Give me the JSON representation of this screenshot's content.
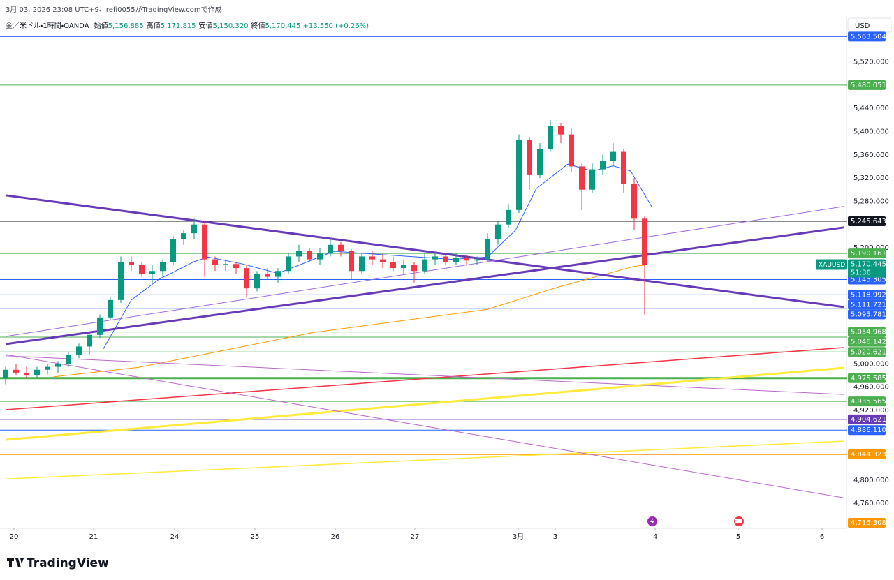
{
  "header": {
    "credit": "3月 03, 2026 23:08 UTC+9、refi0055がTradingView.comで作成",
    "symbol": "金／米ドル・1時間・OANDA",
    "ohlc": [
      {
        "label": "始値",
        "value": "5,156.885"
      },
      {
        "label": "高値",
        "value": "5,171.815"
      },
      {
        "label": "安値",
        "value": "5,150.320"
      },
      {
        "label": "終値",
        "value": "5,170.445"
      }
    ],
    "change": "+13.550 (+0.26%)",
    "currency": "USD",
    "logo": "TradingView"
  },
  "chart_data": {
    "type": "candlestick",
    "up_color": "#089981",
    "down_color": "#f23645",
    "ylim": [
      4717,
      5600
    ],
    "xlim": [
      0,
      240
    ],
    "yticks": [
      {
        "value": 5520,
        "label": "5,520.000"
      },
      {
        "value": 5440,
        "label": "5,440.000"
      },
      {
        "value": 5400,
        "label": "5,400.000"
      },
      {
        "value": 5360,
        "label": "5,360.000"
      },
      {
        "value": 5320,
        "label": "5,320.000"
      },
      {
        "value": 5280,
        "label": "5,280.000"
      },
      {
        "value": 5200,
        "label": "5,200.000"
      },
      {
        "value": 5000,
        "label": "5,000.000"
      },
      {
        "value": 4960,
        "label": "4,960.000"
      },
      {
        "value": 4920,
        "label": "4,920.000"
      },
      {
        "value": 4800,
        "label": "4,800.000"
      },
      {
        "value": 4760,
        "label": "4,760.000"
      }
    ],
    "xticks": [
      {
        "value": 2.4,
        "label": "20"
      },
      {
        "value": 25.2,
        "label": "21"
      },
      {
        "value": 48.4,
        "label": "24"
      },
      {
        "value": 71.4,
        "label": "25"
      },
      {
        "value": 94.4,
        "label": "26"
      },
      {
        "value": 117.2,
        "label": "27"
      },
      {
        "value": 146.8,
        "label": "3月"
      },
      {
        "value": 157.4,
        "label": "3"
      },
      {
        "value": 186,
        "label": "4"
      },
      {
        "value": 209.8,
        "label": "5"
      },
      {
        "value": 233.8,
        "label": "6"
      }
    ],
    "candles": {
      "x": [
        0,
        3,
        6,
        9,
        12,
        15,
        18,
        21,
        24,
        27,
        30,
        33,
        36,
        39,
        42,
        45,
        48,
        51,
        54,
        57,
        60,
        63,
        66,
        69,
        72,
        75,
        78,
        81,
        84,
        87,
        90,
        93,
        96,
        99,
        102,
        105,
        108,
        111,
        114,
        117,
        120,
        123,
        126,
        129,
        132,
        135,
        138,
        141,
        144,
        147,
        150,
        153,
        156,
        159,
        162,
        165,
        168,
        171,
        174,
        177,
        180,
        183
      ],
      "open": [
        4975,
        4990,
        4985,
        4980,
        4990,
        4995,
        5000,
        5015,
        5030,
        5050,
        5080,
        5110,
        5175,
        5170,
        5155,
        5160,
        5175,
        5215,
        5225,
        5240,
        5180,
        5170,
        5172,
        5165,
        5130,
        5155,
        5150,
        5160,
        5185,
        5195,
        5180,
        5190,
        5205,
        5195,
        5160,
        5185,
        5180,
        5175,
        5165,
        5170,
        5160,
        5180,
        5185,
        5175,
        5182,
        5178,
        5180,
        5215,
        5240,
        5265,
        5385,
        5325,
        5370,
        5410,
        5395,
        5340,
        5300,
        5335,
        5350,
        5365,
        5310,
        5250
      ],
      "high": [
        4995,
        5000,
        4995,
        4995,
        5000,
        5005,
        5020,
        5035,
        5055,
        5085,
        5115,
        5185,
        5185,
        5175,
        5170,
        5180,
        5220,
        5230,
        5250,
        5245,
        5185,
        5180,
        5175,
        5170,
        5160,
        5165,
        5165,
        5190,
        5205,
        5200,
        5200,
        5215,
        5210,
        5198,
        5190,
        5195,
        5190,
        5185,
        5180,
        5175,
        5190,
        5190,
        5190,
        5190,
        5188,
        5185,
        5225,
        5245,
        5275,
        5395,
        5390,
        5380,
        5420,
        5415,
        5405,
        5345,
        5345,
        5360,
        5380,
        5370,
        5320,
        5255
      ],
      "low": [
        4965,
        4980,
        4975,
        4975,
        4982,
        4985,
        4995,
        5010,
        5015,
        5045,
        5075,
        5105,
        5160,
        5150,
        5140,
        5150,
        5170,
        5205,
        5215,
        5150,
        5160,
        5160,
        5155,
        5115,
        5125,
        5145,
        5140,
        5155,
        5175,
        5175,
        5170,
        5185,
        5185,
        5145,
        5155,
        5170,
        5165,
        5160,
        5155,
        5140,
        5155,
        5170,
        5170,
        5170,
        5170,
        5170,
        5175,
        5205,
        5235,
        5260,
        5300,
        5320,
        5365,
        5380,
        5330,
        5265,
        5295,
        5325,
        5340,
        5295,
        5230,
        5085
      ],
      "close": [
        4990,
        4985,
        4980,
        4990,
        4995,
        5000,
        5015,
        5030,
        5050,
        5080,
        5110,
        5175,
        5170,
        5155,
        5160,
        5175,
        5215,
        5225,
        5240,
        5180,
        5170,
        5172,
        5165,
        5130,
        5155,
        5150,
        5160,
        5185,
        5195,
        5180,
        5190,
        5205,
        5195,
        5160,
        5185,
        5180,
        5175,
        5165,
        5170,
        5160,
        5180,
        5185,
        5175,
        5182,
        5178,
        5180,
        5215,
        5240,
        5265,
        5385,
        5325,
        5370,
        5410,
        5395,
        5340,
        5300,
        5335,
        5350,
        5365,
        5310,
        5250,
        5170
      ]
    },
    "lines": [
      {
        "color": "#2962ff",
        "width": 1,
        "x": [
          28,
          36,
          44,
          54,
          58,
          68,
          78,
          84,
          94,
          108,
          128,
          138,
          146,
          152,
          161,
          168,
          174,
          179,
          185
        ],
        "values": [
          5026,
          5110,
          5146,
          5176,
          5184,
          5172,
          5156,
          5170,
          5194,
          5188,
          5180,
          5184,
          5230,
          5302,
          5344,
          5332,
          5341,
          5332,
          5271
        ]
      },
      {
        "color": "#ff9800",
        "width": 1,
        "x": [
          14,
          38,
          58,
          88,
          118,
          138,
          158,
          180,
          183
        ],
        "values": [
          4978,
          4994,
          5018,
          5054,
          5078,
          5094,
          5132,
          5168,
          5170
        ]
      },
      {
        "color": "#673ab7",
        "width": 3,
        "x": [
          0,
          240
        ],
        "values": [
          5290.3,
          5098
        ]
      },
      {
        "color": "#673ab7",
        "width": 3,
        "x": [
          0,
          240
        ],
        "values": [
          5034.2,
          5235
        ]
      },
      {
        "color": "#9c6ade",
        "width": 1,
        "x": [
          0,
          240
        ],
        "values": [
          5047.4,
          5271.1
        ]
      },
      {
        "color": "#f23645",
        "width": 1.5,
        "x": [
          0,
          240
        ],
        "values": [
          4921.2,
          5028.2
        ]
      },
      {
        "color": "#ffeb3b",
        "width": 3,
        "x": [
          0,
          240
        ],
        "values": [
          4869.4,
          4993.3
        ]
      },
      {
        "color": "#ffeb3b",
        "width": 1.5,
        "x": [
          0,
          240
        ],
        "values": [
          4802.1,
          4867
        ]
      },
      {
        "color": "#ba68c8",
        "width": 1,
        "x": [
          0,
          240
        ],
        "values": [
          5016.2,
          4769.6
        ]
      },
      {
        "color": "#ba68c8",
        "width": 1,
        "x": [
          0,
          240
        ],
        "values": [
          5014,
          4947.6
        ]
      }
    ],
    "levels": {
      "values": [
        5563.504,
        5480.051,
        5245.643,
        5190.161,
        5145.305,
        5118.992,
        5111.721,
        5095.781,
        5054.968,
        5046.142,
        5020.621,
        4975.585,
        4935.565,
        4904.621,
        4886.11,
        4844.323,
        4715.308
      ],
      "value_labels": [
        "5,563.504",
        "5,480.051",
        "5,245.643",
        "5,190.161",
        "5,145.305",
        "5,118.992",
        "5,111.721",
        "5,095.781",
        "5,054.968",
        "5,046.142",
        "5,020.621",
        "4,975.585",
        "4,935.565",
        "4,904.621",
        "4,886.110",
        "4,844.323",
        "4,715.308"
      ],
      "colors": [
        "#2962ff",
        "#4caf50",
        "#131722",
        "#4caf50",
        "#2962ff",
        "#2962ff",
        "#2962ff",
        "#2962ff",
        "#4caf50",
        "#4caf50",
        "#4caf50",
        "#4caf50",
        "#4caf50",
        "#673ab7",
        "#2962ff",
        "#ff9800",
        "#ff9800"
      ],
      "widths": [
        1,
        1,
        1,
        1,
        1,
        1,
        1,
        1,
        1,
        1,
        1,
        3,
        1,
        1,
        1,
        1.5,
        0
      ]
    },
    "last_price": {
      "value": 5170.445,
      "label": "5,170.445",
      "symbol": "XAUUSD",
      "countdown": "51:36"
    }
  }
}
